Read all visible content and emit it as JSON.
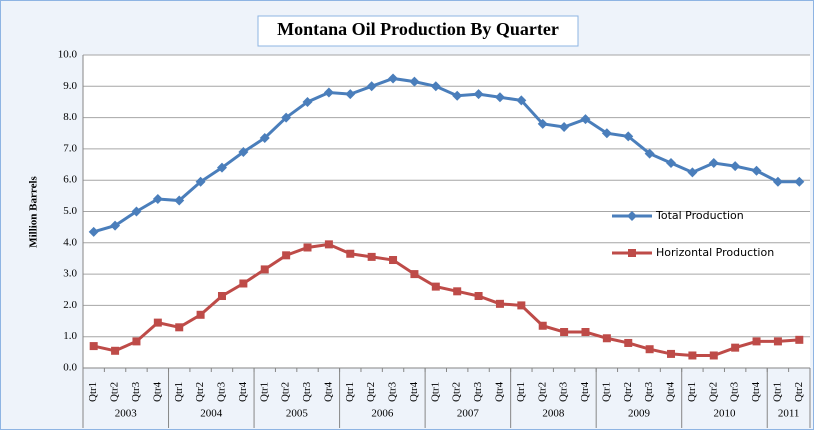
{
  "chart_data": {
    "type": "line",
    "title": "Montana Oil Production By Quarter",
    "y_label": "Million Barrels",
    "categories": [
      "Qtr1",
      "Qtr2",
      "Qtr3",
      "Qtr4",
      "Qtr1",
      "Qtr2",
      "Qtr3",
      "Qtr4",
      "Qtr1",
      "Qtr2",
      "Qtr3",
      "Qtr4",
      "Qtr1",
      "Qtr2",
      "Qtr3",
      "Qtr4",
      "Qtr1",
      "Qtr2",
      "Qtr3",
      "Qtr4",
      "Qtr1",
      "Qtr2",
      "Qtr3",
      "Qtr4",
      "Qtr1",
      "Qtr2",
      "Qtr3",
      "Qtr4",
      "Qtr1",
      "Qtr2",
      "Qtr3",
      "Qtr4",
      "Qtr1",
      "Qtr2"
    ],
    "year_groups": [
      "2003",
      "2004",
      "2005",
      "2006",
      "2007",
      "2008",
      "2009",
      "2010",
      "2011"
    ],
    "series": [
      {
        "name": "Total Production",
        "color": "#4a7ebb",
        "marker": "diamond",
        "values": [
          4.35,
          4.55,
          5.0,
          5.4,
          5.35,
          5.95,
          6.4,
          6.9,
          7.35,
          8.0,
          8.5,
          8.8,
          8.75,
          9.0,
          9.25,
          9.15,
          9.0,
          8.7,
          8.75,
          8.65,
          8.55,
          7.8,
          7.7,
          7.95,
          7.5,
          7.4,
          6.85,
          6.55,
          6.25,
          6.55,
          6.45,
          6.3,
          5.95,
          5.95
        ]
      },
      {
        "name": "Horizontal Production",
        "color": "#be4b48",
        "marker": "square",
        "values": [
          0.7,
          0.55,
          0.85,
          1.45,
          1.3,
          1.7,
          2.3,
          2.7,
          3.15,
          3.6,
          3.85,
          3.95,
          3.65,
          3.55,
          3.45,
          3.0,
          2.6,
          2.45,
          2.3,
          2.05,
          2.0,
          1.35,
          1.15,
          1.15,
          0.95,
          0.8,
          0.6,
          0.45,
          0.4,
          0.4,
          0.65,
          0.85,
          0.85,
          0.9
        ]
      }
    ],
    "ylim": [
      0,
      10
    ],
    "yticks": [
      {
        "value": 0,
        "label": "0.0"
      },
      {
        "value": 1,
        "label": "1.0"
      },
      {
        "value": 2,
        "label": "2.0"
      },
      {
        "value": 3,
        "label": "3.0"
      },
      {
        "value": 4,
        "label": "4.0"
      },
      {
        "value": 5,
        "label": "5.0"
      },
      {
        "value": 6,
        "label": "6.0"
      },
      {
        "value": 7,
        "label": "7.0"
      },
      {
        "value": 8,
        "label": "8.0"
      },
      {
        "value": 9,
        "label": "9.0"
      },
      {
        "value": 10,
        "label": "10.0"
      }
    ],
    "grid": true
  }
}
